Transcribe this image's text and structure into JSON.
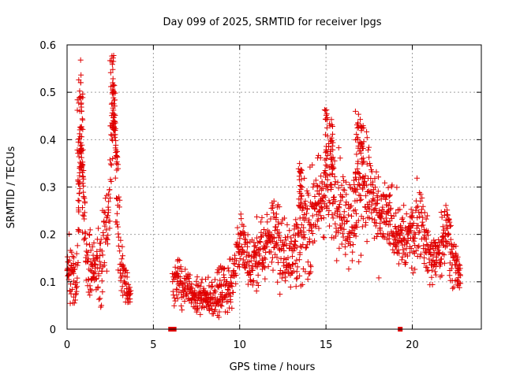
{
  "chart_data": {
    "type": "scatter",
    "title": "Day 099 of 2025, SRMTID for receiver lpgs",
    "xlabel": "GPS time / hours",
    "ylabel": "SRMTID / TECUs",
    "xlim": [
      0,
      24
    ],
    "ylim": [
      0,
      0.6
    ],
    "grid": true,
    "marker": "plus",
    "color": "#e00000",
    "x_ticks": [
      0,
      5,
      10,
      15,
      20
    ],
    "y_ticks": [
      0,
      0.1,
      0.2,
      0.3,
      0.4,
      0.5,
      0.6
    ],
    "x_tick_labels": [
      "0",
      "5",
      "10",
      "15",
      "20"
    ],
    "y_tick_labels": [
      "0",
      "0.1",
      "0.2",
      "0.3",
      "0.4",
      "0.5",
      "0.6"
    ],
    "data_gap_markers": [
      {
        "x": 6.0,
        "y": 0
      },
      {
        "x": 6.2,
        "y": 0
      },
      {
        "x": 19.3,
        "y": 0
      }
    ],
    "trend": [
      [
        0.0,
        0.13,
        0.04
      ],
      [
        0.3,
        0.12,
        0.04
      ],
      [
        0.6,
        0.1,
        0.05
      ],
      [
        0.8,
        0.45,
        0.08
      ],
      [
        0.9,
        0.3,
        0.08
      ],
      [
        1.1,
        0.15,
        0.05
      ],
      [
        1.5,
        0.12,
        0.04
      ],
      [
        2.0,
        0.15,
        0.06
      ],
      [
        2.4,
        0.22,
        0.06
      ],
      [
        2.7,
        0.45,
        0.08
      ],
      [
        2.9,
        0.3,
        0.08
      ],
      [
        3.1,
        0.15,
        0.05
      ],
      [
        3.4,
        0.09,
        0.03
      ],
      [
        3.7,
        0.07,
        0.015
      ],
      [
        6.1,
        0.11,
        0.03
      ],
      [
        6.5,
        0.1,
        0.04
      ],
      [
        7.0,
        0.08,
        0.03
      ],
      [
        7.5,
        0.065,
        0.025
      ],
      [
        8.0,
        0.06,
        0.025
      ],
      [
        8.5,
        0.07,
        0.03
      ],
      [
        9.0,
        0.08,
        0.035
      ],
      [
        9.5,
        0.09,
        0.04
      ],
      [
        9.8,
        0.15,
        0.04
      ],
      [
        10.1,
        0.2,
        0.04
      ],
      [
        10.5,
        0.12,
        0.05
      ],
      [
        11.0,
        0.15,
        0.05
      ],
      [
        11.5,
        0.17,
        0.05
      ],
      [
        12.0,
        0.22,
        0.06
      ],
      [
        12.5,
        0.15,
        0.05
      ],
      [
        13.0,
        0.17,
        0.06
      ],
      [
        13.5,
        0.2,
        0.07
      ],
      [
        14.0,
        0.22,
        0.07
      ],
      [
        14.5,
        0.26,
        0.07
      ],
      [
        15.0,
        0.3,
        0.08
      ],
      [
        15.5,
        0.3,
        0.09
      ],
      [
        16.0,
        0.25,
        0.07
      ],
      [
        16.5,
        0.22,
        0.07
      ],
      [
        17.0,
        0.3,
        0.09
      ],
      [
        17.5,
        0.3,
        0.08
      ],
      [
        18.0,
        0.22,
        0.06
      ],
      [
        18.5,
        0.24,
        0.05
      ],
      [
        19.0,
        0.22,
        0.05
      ],
      [
        19.5,
        0.18,
        0.05
      ],
      [
        20.0,
        0.2,
        0.05
      ],
      [
        20.5,
        0.24,
        0.06
      ],
      [
        21.0,
        0.15,
        0.04
      ],
      [
        21.5,
        0.15,
        0.04
      ],
      [
        22.0,
        0.22,
        0.05
      ],
      [
        22.4,
        0.15,
        0.04
      ],
      [
        22.8,
        0.1,
        0.03
      ]
    ],
    "spikes": [
      [
        0.7,
        0.53,
        0.8
      ],
      [
        0.8,
        0.5,
        0.8
      ],
      [
        0.85,
        0.34,
        0.6
      ],
      [
        2.6,
        0.58,
        0.8
      ],
      [
        2.7,
        0.52,
        0.8
      ],
      [
        2.8,
        0.42,
        0.6
      ],
      [
        15.0,
        0.47,
        0.6
      ],
      [
        15.3,
        0.45,
        0.6
      ],
      [
        16.8,
        0.46,
        0.7
      ],
      [
        17.1,
        0.43,
        0.6
      ],
      [
        13.5,
        0.35,
        0.5
      ]
    ]
  }
}
